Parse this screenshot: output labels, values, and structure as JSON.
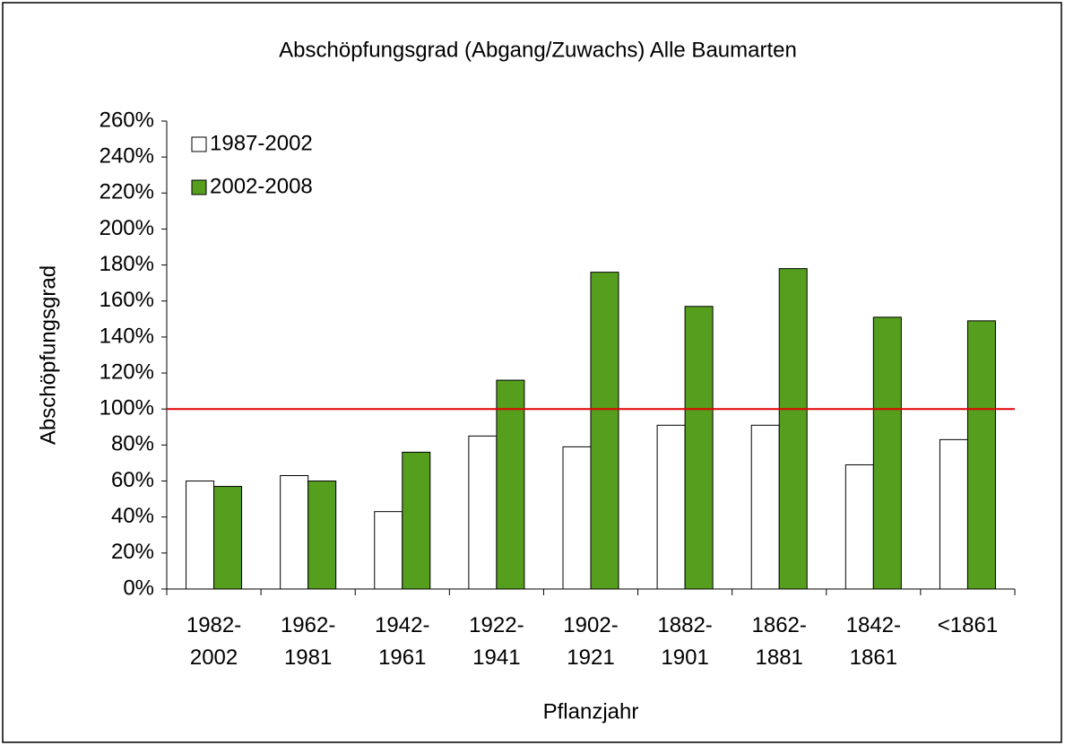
{
  "chart_data": {
    "type": "bar",
    "title": "Abschöpfungsgrad (Abgang/Zuwachs) Alle Baumarten",
    "x_label": "Pflanzjahr",
    "y_label": "Abschöpfungsgrad",
    "categories": [
      "1982-2002",
      "1962-1981",
      "1942-1961",
      "1922-1941",
      "1902-1921",
      "1882-1901",
      "1862-1881",
      "1842-1861",
      "<1861"
    ],
    "series": [
      {
        "name": "1987-2002",
        "color": "#ffffff",
        "values": [
          60,
          63,
          43,
          85,
          79,
          91,
          91,
          69,
          83
        ]
      },
      {
        "name": "2002-2008",
        "color": "#569e1e",
        "values": [
          57,
          60,
          76,
          116,
          176,
          157,
          178,
          151,
          149
        ]
      }
    ],
    "ylim": [
      0,
      260
    ],
    "yticks": [
      {
        "value": 0,
        "label": "0%"
      },
      {
        "value": 20,
        "label": "20%"
      },
      {
        "value": 40,
        "label": "40%"
      },
      {
        "value": 60,
        "label": "60%"
      },
      {
        "value": 80,
        "label": "80%"
      },
      {
        "value": 100,
        "label": "100%"
      },
      {
        "value": 120,
        "label": "120%"
      },
      {
        "value": 140,
        "label": "140%"
      },
      {
        "value": 160,
        "label": "160%"
      },
      {
        "value": 180,
        "label": "180%"
      },
      {
        "value": 200,
        "label": "200%"
      },
      {
        "value": 220,
        "label": "220%"
      },
      {
        "value": 240,
        "label": "240%"
      },
      {
        "value": 260,
        "label": "260%"
      }
    ],
    "reference_line": {
      "value": 100,
      "color": "#e00000"
    },
    "grid": false,
    "legend": "upper left"
  }
}
